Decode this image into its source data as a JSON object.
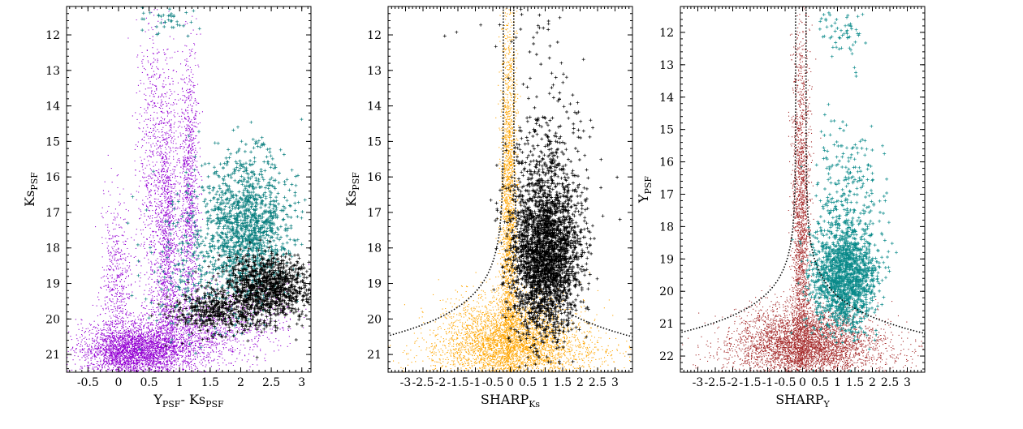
{
  "chart_data": [
    {
      "type": "scatter",
      "xlabel_main": "Y",
      "xlabel_sub": "PSF",
      "xlabel_mid": "- Ks",
      "xlabel_sub2": "PSF",
      "ylabel_main": "Ks",
      "ylabel_sub": "PSF",
      "xlim": [
        -0.85,
        3.15
      ],
      "ylim": [
        21.5,
        11.2
      ],
      "y_inverted": true,
      "xticks": [
        -0.5,
        0,
        0.5,
        1,
        1.5,
        2,
        2.5,
        3
      ],
      "xtick_labels": [
        "-0.5",
        "0",
        "0.5",
        "1",
        "1.5",
        "2",
        "2.5",
        "3"
      ],
      "yticks": [
        12,
        13,
        14,
        15,
        16,
        17,
        18,
        19,
        20,
        21
      ],
      "ytick_labels": [
        "12",
        "13",
        "14",
        "15",
        "16",
        "17",
        "18",
        "19",
        "20",
        "21"
      ],
      "series": [
        {
          "color": "#9400d3",
          "marker": "dot",
          "clouds": [
            {
              "cx": 0.2,
              "cy": 20.9,
              "sx": 0.4,
              "sy": 0.35,
              "n": 2600
            },
            {
              "cx": 0.9,
              "cy": 20.6,
              "sx": 0.55,
              "sy": 0.5,
              "n": 1200
            },
            {
              "cx": 0.8,
              "cy": 17.8,
              "sx": 0.09,
              "sy": 2.2,
              "n": 1300
            },
            {
              "cx": 1.15,
              "cy": 16.5,
              "sx": 0.08,
              "sy": 2.0,
              "n": 1100
            },
            {
              "cx": 0.55,
              "cy": 16.0,
              "sx": 0.12,
              "sy": 2.6,
              "n": 700
            },
            {
              "cx": -0.05,
              "cy": 19.0,
              "sx": 0.12,
              "sy": 1.2,
              "n": 500
            },
            {
              "cx": 1.75,
              "cy": 20.0,
              "sx": 0.6,
              "sy": 0.6,
              "n": 700
            }
          ]
        },
        {
          "color": "#0a7f7f",
          "marker": "plus",
          "clouds": [
            {
              "cx": 2.1,
              "cy": 17.4,
              "sx": 0.35,
              "sy": 1.0,
              "n": 1300
            },
            {
              "cx": 1.3,
              "cy": 18.5,
              "sx": 0.45,
              "sy": 1.1,
              "n": 250
            },
            {
              "cx": 0.8,
              "cy": 11.6,
              "sx": 0.25,
              "sy": 0.25,
              "n": 40
            }
          ]
        },
        {
          "color": "#000000",
          "marker": "plus",
          "clouds": [
            {
              "cx": 2.45,
              "cy": 19.1,
              "sx": 0.38,
              "sy": 0.45,
              "n": 1100
            },
            {
              "cx": 1.6,
              "cy": 19.8,
              "sx": 0.35,
              "sy": 0.3,
              "n": 400
            }
          ]
        }
      ]
    },
    {
      "type": "scatter",
      "xlabel_main": "SHARP",
      "xlabel_sub": "Ks",
      "ylabel_main": "Ks",
      "ylabel_sub": "PSF",
      "xlim": [
        -3.5,
        3.5
      ],
      "ylim": [
        21.5,
        11.2
      ],
      "y_inverted": true,
      "xticks": [
        -3,
        -2.5,
        -2,
        -1.5,
        -1,
        -0.5,
        0,
        0.5,
        1,
        1.5,
        2,
        2.5,
        3
      ],
      "xtick_labels": [
        "-3",
        "-2.5",
        "-2",
        "-1.5",
        "-1",
        "-0.5",
        "0",
        "0.5",
        "1",
        "1.5",
        "2",
        "2.5",
        "3"
      ],
      "yticks": [
        12,
        13,
        14,
        15,
        16,
        17,
        18,
        19,
        20,
        21
      ],
      "ytick_labels": [
        "12",
        "13",
        "14",
        "15",
        "16",
        "17",
        "18",
        "19",
        "20",
        "21"
      ],
      "cut_curve": {
        "center": -0.05,
        "width_bright": 0.15,
        "grow": 1.15,
        "y_start": 11.2,
        "y_end": 20.5
      },
      "series": [
        {
          "color": "#ffa500",
          "marker": "dot",
          "clouds": [
            {
              "cx": -0.05,
              "cy": 20.5,
              "sx": 0.9,
              "sy": 0.6,
              "n": 3000
            },
            {
              "cx": -0.05,
              "cy": 17.0,
              "sx": 0.12,
              "sy": 2.8,
              "n": 2200
            },
            {
              "cx": 0.3,
              "cy": 21.0,
              "sx": 1.4,
              "sy": 0.35,
              "n": 1200
            }
          ]
        },
        {
          "color": "#000000",
          "marker": "plus",
          "clouds": [
            {
              "cx": 1.0,
              "cy": 18.2,
              "sx": 0.5,
              "sy": 1.1,
              "n": 2600
            },
            {
              "cx": 1.1,
              "cy": 15.6,
              "sx": 0.55,
              "sy": 1.2,
              "n": 300
            },
            {
              "cx": 0.5,
              "cy": 11.8,
              "sx": 0.8,
              "sy": 0.3,
              "n": 25
            }
          ]
        }
      ]
    },
    {
      "type": "scatter",
      "xlabel_main": "SHARP",
      "xlabel_sub": "Y",
      "ylabel_main": "Y",
      "ylabel_sub": "PSF",
      "xlim": [
        -3.5,
        3.5
      ],
      "ylim": [
        22.5,
        11.2
      ],
      "y_inverted": true,
      "xticks": [
        -3,
        -2.5,
        -2,
        -1.5,
        -1,
        -0.5,
        0,
        0.5,
        1,
        1.5,
        2,
        2.5,
        3
      ],
      "xtick_labels": [
        "-3",
        "-2.5",
        "-2",
        "-1.5",
        "-1",
        "-0.5",
        "0",
        "0.5",
        "1",
        "1.5",
        "2",
        "2.5",
        "3"
      ],
      "yticks": [
        12,
        13,
        14,
        15,
        16,
        17,
        18,
        19,
        20,
        21,
        22
      ],
      "ytick_labels": [
        "12",
        "13",
        "14",
        "15",
        "16",
        "17",
        "18",
        "19",
        "20",
        "21",
        "22"
      ],
      "cut_curve": {
        "center": -0.05,
        "width_bright": 0.15,
        "grow": 1.15,
        "y_start": 11.2,
        "y_end": 21.3
      },
      "series": [
        {
          "color": "#a52a2a",
          "marker": "dot",
          "clouds": [
            {
              "cx": 0.0,
              "cy": 21.5,
              "sx": 0.9,
              "sy": 0.55,
              "n": 3200
            },
            {
              "cx": -0.05,
              "cy": 18.0,
              "sx": 0.13,
              "sy": 3.0,
              "n": 2200
            },
            {
              "cx": 0.3,
              "cy": 21.9,
              "sx": 1.4,
              "sy": 0.35,
              "n": 1200
            }
          ]
        },
        {
          "color": "#0a8a8a",
          "marker": "plus",
          "clouds": [
            {
              "cx": 1.2,
              "cy": 19.6,
              "sx": 0.45,
              "sy": 0.8,
              "n": 1500
            },
            {
              "cx": 1.25,
              "cy": 17.3,
              "sx": 0.45,
              "sy": 1.3,
              "n": 300
            },
            {
              "cx": 1.2,
              "cy": 12.0,
              "sx": 0.35,
              "sy": 0.4,
              "n": 60
            }
          ]
        }
      ]
    }
  ]
}
